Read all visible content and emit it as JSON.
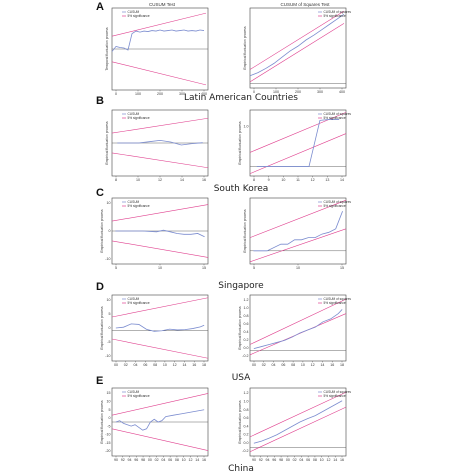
{
  "figure": {
    "panel_titles": [
      "CUSUM Test",
      "CUSUM of Squares Test"
    ],
    "colors": {
      "series": "#7b8ccf",
      "bounds": "#e0418f",
      "mid": "#555555",
      "frame": "#444444"
    }
  },
  "chart_data": [
    {
      "type": "line",
      "row": "A",
      "test": "CUSUM",
      "title": "CUSUM Test",
      "country": "Latin American Countries",
      "xlim": [
        0,
        480
      ],
      "ylim": [
        -80,
        80
      ],
      "xticks": [
        "0",
        "100",
        "200",
        "300",
        "400"
      ],
      "yticks": [],
      "ylabel": "Temporal fluctuation process",
      "legend": [
        "CUSUM",
        "5% significance"
      ],
      "series": {
        "x": [
          0,
          20,
          40,
          60,
          80,
          100,
          120,
          140,
          160,
          180,
          200,
          220,
          240,
          260,
          280,
          300,
          320,
          340,
          360,
          380,
          400,
          420,
          440,
          460
        ],
        "y": [
          -5,
          5,
          3,
          2,
          -2,
          30,
          35,
          33,
          35,
          34,
          36,
          35,
          37,
          35,
          36,
          37,
          35,
          36,
          37,
          35,
          36,
          35,
          37,
          36
        ]
      },
      "upper": [
        [
          0,
          25
        ],
        [
          470,
          70
        ]
      ],
      "lower": [
        [
          0,
          -25
        ],
        [
          470,
          -70
        ]
      ],
      "mid": 0
    },
    {
      "type": "line",
      "row": "A",
      "test": "CUSUM of Squares",
      "title": "CUSUM of Squares Test",
      "xlim": [
        0,
        480
      ],
      "ylim": [
        -0.2,
        1.1
      ],
      "xticks": [
        "0",
        "100",
        "200",
        "300",
        "400"
      ],
      "yticks": [],
      "ylabel": "Empirical fluctuation process",
      "legend": [
        "CUSUM of squares",
        "5% significance"
      ],
      "series": {
        "x": [
          0,
          40,
          80,
          120,
          160,
          200,
          240,
          280,
          320,
          360,
          400,
          440,
          470
        ],
        "y": [
          0,
          0.05,
          0.12,
          0.2,
          0.3,
          0.4,
          0.48,
          0.58,
          0.66,
          0.75,
          0.84,
          0.93,
          1.0
        ]
      },
      "upper": [
        [
          0,
          0.1
        ],
        [
          470,
          1.05
        ]
      ],
      "lower": [
        [
          0,
          -0.1
        ],
        [
          470,
          0.85
        ]
      ],
      "mid": -0.13
    },
    {
      "type": "line",
      "row": "B",
      "test": "CUSUM",
      "country": "South Korea",
      "xlim": [
        7.5,
        16.5
      ],
      "ylim": [
        -10,
        10
      ],
      "xticks": [
        "8",
        "10",
        "12",
        "14",
        "16"
      ],
      "yticks": [],
      "ylabel": "Empirical fluctuation process",
      "legend": [
        "CUSUM",
        "5% significance"
      ],
      "series": {
        "x": [
          8,
          9,
          10,
          11,
          12,
          13,
          14,
          15,
          16
        ],
        "y": [
          0,
          0,
          0,
          0.4,
          0.8,
          0.3,
          -0.6,
          -0.2,
          0.1
        ]
      },
      "upper": [
        [
          7.5,
          3
        ],
        [
          16.5,
          7.5
        ]
      ],
      "lower": [
        [
          7.5,
          -3
        ],
        [
          16.5,
          -7.5
        ]
      ],
      "mid": 0
    },
    {
      "type": "line",
      "row": "B",
      "test": "CUSUM of Squares",
      "xlim": [
        7.5,
        14.5
      ],
      "ylim": [
        -0.2,
        1.2
      ],
      "xticks": [
        "8",
        "9",
        "10",
        "11",
        "12",
        "13",
        "14"
      ],
      "yticks": [
        "1.0"
      ],
      "ylabel": "Empirical fluctuation process",
      "legend": [
        "CUSUM of squares",
        "5% significance"
      ],
      "series": {
        "x": [
          8,
          9,
          10,
          11,
          11.8,
          12.6,
          13.3,
          14
        ],
        "y": [
          0.0,
          0.0,
          0.0,
          0.0,
          0.0,
          0.98,
          1.0,
          1.0
        ]
      },
      "upper": [
        [
          7.5,
          0.3
        ],
        [
          14.5,
          1.15
        ]
      ],
      "lower": [
        [
          7.5,
          -0.15
        ],
        [
          14.5,
          0.7
        ]
      ],
      "mid": 0
    },
    {
      "type": "line",
      "row": "C",
      "test": "CUSUM",
      "country": "Singapore",
      "xlim": [
        2.5,
        16.5
      ],
      "ylim": [
        -20,
        20
      ],
      "xticks": [
        "5",
        "10",
        "15"
      ],
      "yticks": [
        "10",
        "0",
        "-10"
      ],
      "ylabel": "Empirical fluctuation process",
      "legend": [
        "CUSUM",
        "5% significance"
      ],
      "series": {
        "x": [
          3,
          5,
          7,
          9,
          10,
          11,
          12,
          13,
          14,
          15,
          16
        ],
        "y": [
          0,
          0,
          0,
          -0.5,
          0.5,
          -0.5,
          -1.5,
          -2,
          -2,
          -1.5,
          -3.5
        ]
      },
      "upper": [
        [
          2.5,
          6
        ],
        [
          16.5,
          16
        ]
      ],
      "lower": [
        [
          2.5,
          -6
        ],
        [
          16.5,
          -16
        ]
      ],
      "mid": 0
    },
    {
      "type": "line",
      "row": "C",
      "test": "CUSUM of Squares",
      "xlim": [
        2.5,
        16.5
      ],
      "ylim": [
        -0.3,
        1.2
      ],
      "xticks": [
        "5",
        "10",
        "15"
      ],
      "yticks": [],
      "ylabel": "Empirical fluctuation process",
      "legend": [
        "CUSUM of squares",
        "5% significance"
      ],
      "series": {
        "x": [
          3,
          5,
          7,
          8,
          9,
          10,
          11,
          12,
          13,
          14,
          15,
          16
        ],
        "y": [
          0.0,
          0.0,
          0.15,
          0.15,
          0.25,
          0.25,
          0.3,
          0.3,
          0.38,
          0.42,
          0.5,
          0.9
        ]
      },
      "upper": [
        [
          2.5,
          0.3
        ],
        [
          16.5,
          1.15
        ]
      ],
      "lower": [
        [
          2.5,
          -0.25
        ],
        [
          16.5,
          0.5
        ]
      ],
      "mid": 0
    },
    {
      "type": "line",
      "row": "D",
      "test": "CUSUM",
      "country": "USA",
      "xlim": [
        0,
        25
      ],
      "ylim": [
        -12,
        12
      ],
      "xticks": [
        "00",
        "02",
        "04",
        "06",
        "08",
        "10",
        "12",
        "14",
        "16",
        "18"
      ],
      "yticks": [
        "10",
        "5",
        "0",
        "-5",
        "-10"
      ],
      "ylabel": "Empirical fluctuation process",
      "legend": [
        "CUSUM",
        "5% significance"
      ],
      "series": {
        "x": [
          1,
          3,
          5,
          7,
          9,
          11,
          13,
          15,
          17,
          19,
          21,
          23,
          24
        ],
        "y": [
          0,
          0.3,
          1.5,
          1.3,
          -0.5,
          -1.2,
          -1,
          -0.4,
          -0.7,
          -0.6,
          -0.2,
          0.4,
          1
        ]
      },
      "upper": [
        [
          0,
          4
        ],
        [
          25,
          11
        ]
      ],
      "lower": [
        [
          0,
          -4
        ],
        [
          25,
          -11
        ]
      ],
      "mid": -1
    },
    {
      "type": "line",
      "row": "D",
      "test": "CUSUM of Squares",
      "xlim": [
        0,
        25
      ],
      "ylim": [
        -0.3,
        1.3
      ],
      "xticks": [
        "00",
        "02",
        "04",
        "06",
        "08",
        "10",
        "12",
        "14",
        "16",
        "18"
      ],
      "yticks": [
        "1.2",
        "1.0",
        "0.8",
        "0.6",
        "0.4",
        "0.2",
        "0.0",
        "-0.2"
      ],
      "ylabel": "Empirical fluctuation process",
      "legend": [
        "CUSUM of squares",
        "5% significance"
      ],
      "series": {
        "x": [
          1,
          3,
          5,
          7,
          9,
          11,
          13,
          15,
          17,
          19,
          21,
          23,
          24
        ],
        "y": [
          0,
          0.05,
          0.1,
          0.15,
          0.2,
          0.28,
          0.38,
          0.45,
          0.52,
          0.65,
          0.72,
          0.85,
          0.95
        ]
      },
      "upper": [
        [
          0,
          0.1
        ],
        [
          25,
          1.2
        ]
      ],
      "lower": [
        [
          0,
          -0.15
        ],
        [
          25,
          0.85
        ]
      ],
      "mid": -0.05
    },
    {
      "type": "line",
      "row": "E",
      "test": "CUSUM",
      "country": "China",
      "xlim": [
        0,
        25
      ],
      "ylim": [
        -25,
        25
      ],
      "xticks": [
        "90",
        "92",
        "94",
        "96",
        "98",
        "00",
        "02",
        "04",
        "06",
        "08",
        "10",
        "12",
        "14",
        "16"
      ],
      "yticks": [
        "15",
        "10",
        "5",
        "0",
        "-5",
        "-10",
        "-15",
        "-20"
      ],
      "ylabel": "Empirical fluctuation process",
      "legend": [
        "CUSUM",
        "5% significance"
      ],
      "series": {
        "x": [
          1,
          2,
          3,
          4,
          5,
          6,
          7,
          8,
          9,
          10,
          11,
          12,
          13,
          14,
          16,
          18,
          20,
          22,
          24
        ],
        "y": [
          0,
          1,
          -1,
          -2,
          -3,
          -2,
          -4,
          -6,
          -5,
          0,
          2,
          0,
          1,
          4,
          5,
          6,
          7,
          8,
          9
        ]
      },
      "upper": [
        [
          0,
          5
        ],
        [
          25,
          21
        ]
      ],
      "lower": [
        [
          0,
          -5
        ],
        [
          25,
          -21
        ]
      ],
      "mid": 0
    },
    {
      "type": "line",
      "row": "E",
      "test": "CUSUM of Squares",
      "xlim": [
        0,
        25
      ],
      "ylim": [
        -0.3,
        1.3
      ],
      "xticks": [
        "90",
        "92",
        "94",
        "96",
        "98",
        "00",
        "02",
        "04",
        "06",
        "08",
        "10",
        "12",
        "14",
        "16"
      ],
      "yticks": [
        "1.2",
        "1.0",
        "0.8",
        "0.6",
        "0.4",
        "0.2",
        "0.0",
        "-0.2"
      ],
      "ylabel": "Empirical fluctuation process",
      "legend": [
        "CUSUM of squares",
        "5% significance"
      ],
      "series": {
        "x": [
          1,
          3,
          5,
          7,
          9,
          11,
          13,
          15,
          17,
          19,
          21,
          23,
          24
        ],
        "y": [
          0,
          0.05,
          0.12,
          0.2,
          0.3,
          0.4,
          0.5,
          0.58,
          0.65,
          0.75,
          0.85,
          0.95,
          1.0
        ]
      },
      "upper": [
        [
          0,
          0.15
        ],
        [
          25,
          1.2
        ]
      ],
      "lower": [
        [
          0,
          -0.2
        ],
        [
          25,
          0.85
        ]
      ],
      "mid": -0.1
    }
  ]
}
